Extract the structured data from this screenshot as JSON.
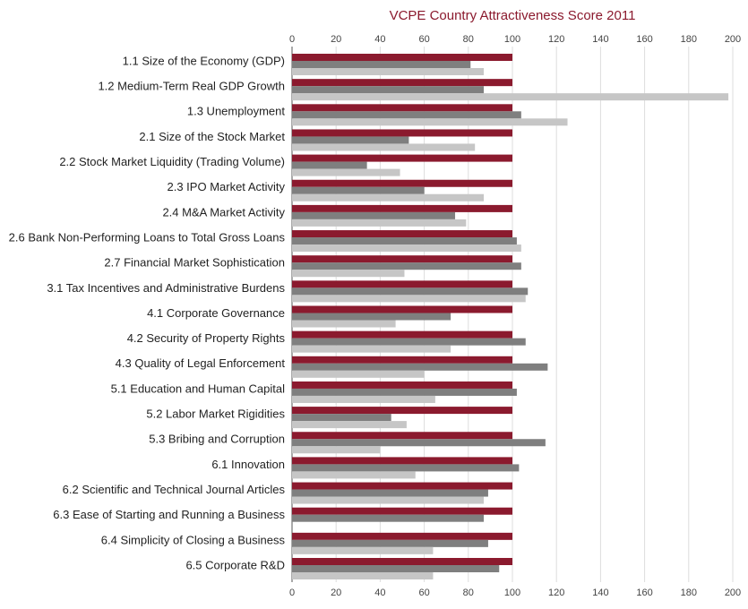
{
  "chart_data": {
    "type": "bar",
    "orientation": "horizontal",
    "title": "VCPE Country Attractiveness Score 2011",
    "categories": [
      "1.1 Size of the Economy (GDP)",
      "1.2 Medium-Term Real GDP Growth",
      "1.3 Unemployment",
      "2.1 Size of the Stock Market",
      "2.2 Stock Market Liquidity (Trading Volume)",
      "2.3 IPO Market Activity",
      "2.4 M&A Market Activity",
      "2.6 Bank Non-Performing Loans to Total Gross Loans",
      "2.7 Financial Market Sophistication",
      "3.1 Tax Incentives and Administrative Burdens",
      "4.1 Corporate Governance",
      "4.2 Security of Property Rights",
      "4.3 Quality of Legal Enforcement",
      "5.1 Education and Human Capital",
      "5.2 Labor Market Rigidities",
      "5.3 Bribing and Corruption",
      "6.1 Innovation",
      "6.2 Scientific and Technical Journal Articles",
      "6.3 Ease of Starting and Running a Business",
      "6.4 Simplicity of Closing a Business",
      "6.5 Corporate R&D"
    ],
    "series": [
      {
        "color": "#8b1a2e",
        "values": [
          100,
          100,
          100,
          100,
          100,
          100,
          100,
          100,
          100,
          100,
          100,
          100,
          100,
          100,
          100,
          100,
          100,
          100,
          100,
          100,
          100
        ]
      },
      {
        "color": "#7f7f7f",
        "values": [
          81,
          87,
          104,
          53,
          34,
          60,
          74,
          102,
          104,
          107,
          72,
          106,
          116,
          102,
          45,
          115,
          103,
          89,
          87,
          89,
          94
        ]
      },
      {
        "color": "#c6c6c6",
        "values": [
          87,
          198,
          125,
          83,
          49,
          87,
          79,
          104,
          51,
          106,
          47,
          72,
          60,
          65,
          52,
          40,
          56,
          87,
          null,
          64,
          64
        ]
      }
    ],
    "xlim": [
      0,
      200
    ],
    "xticks": [
      0,
      20,
      40,
      60,
      80,
      100,
      120,
      140,
      160,
      180,
      200
    ],
    "grid": true
  }
}
